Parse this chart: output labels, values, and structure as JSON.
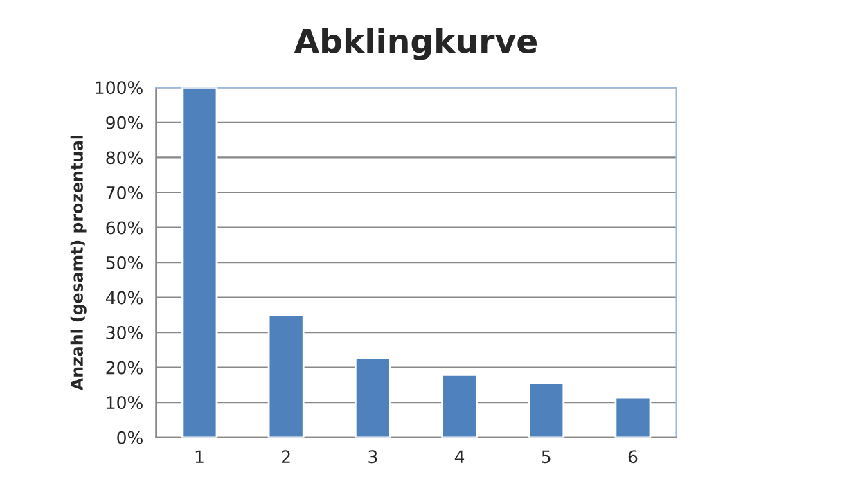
{
  "chart_data": {
    "type": "bar",
    "title": "Abklingkurve",
    "ylabel": "Anzahl (gesamt) prozentual",
    "categories": [
      "1",
      "2",
      "3",
      "4",
      "5",
      "6"
    ],
    "values": [
      100,
      35,
      22.7,
      17.9,
      15.5,
      11.4
    ],
    "color": "#4f81bd",
    "ylim": [
      0,
      100
    ],
    "yticks": [
      {
        "value": 0,
        "label": "0%"
      },
      {
        "value": 10,
        "label": "10%"
      },
      {
        "value": 20,
        "label": "20%"
      },
      {
        "value": 30,
        "label": "30%"
      },
      {
        "value": 40,
        "label": "40%"
      },
      {
        "value": 50,
        "label": "50%"
      },
      {
        "value": 60,
        "label": "60%"
      },
      {
        "value": 70,
        "label": "70%"
      },
      {
        "value": 80,
        "label": "80%"
      },
      {
        "value": 90,
        "label": "90%"
      },
      {
        "value": 100,
        "label": "100%"
      }
    ],
    "grid": "y",
    "legend": false
  }
}
